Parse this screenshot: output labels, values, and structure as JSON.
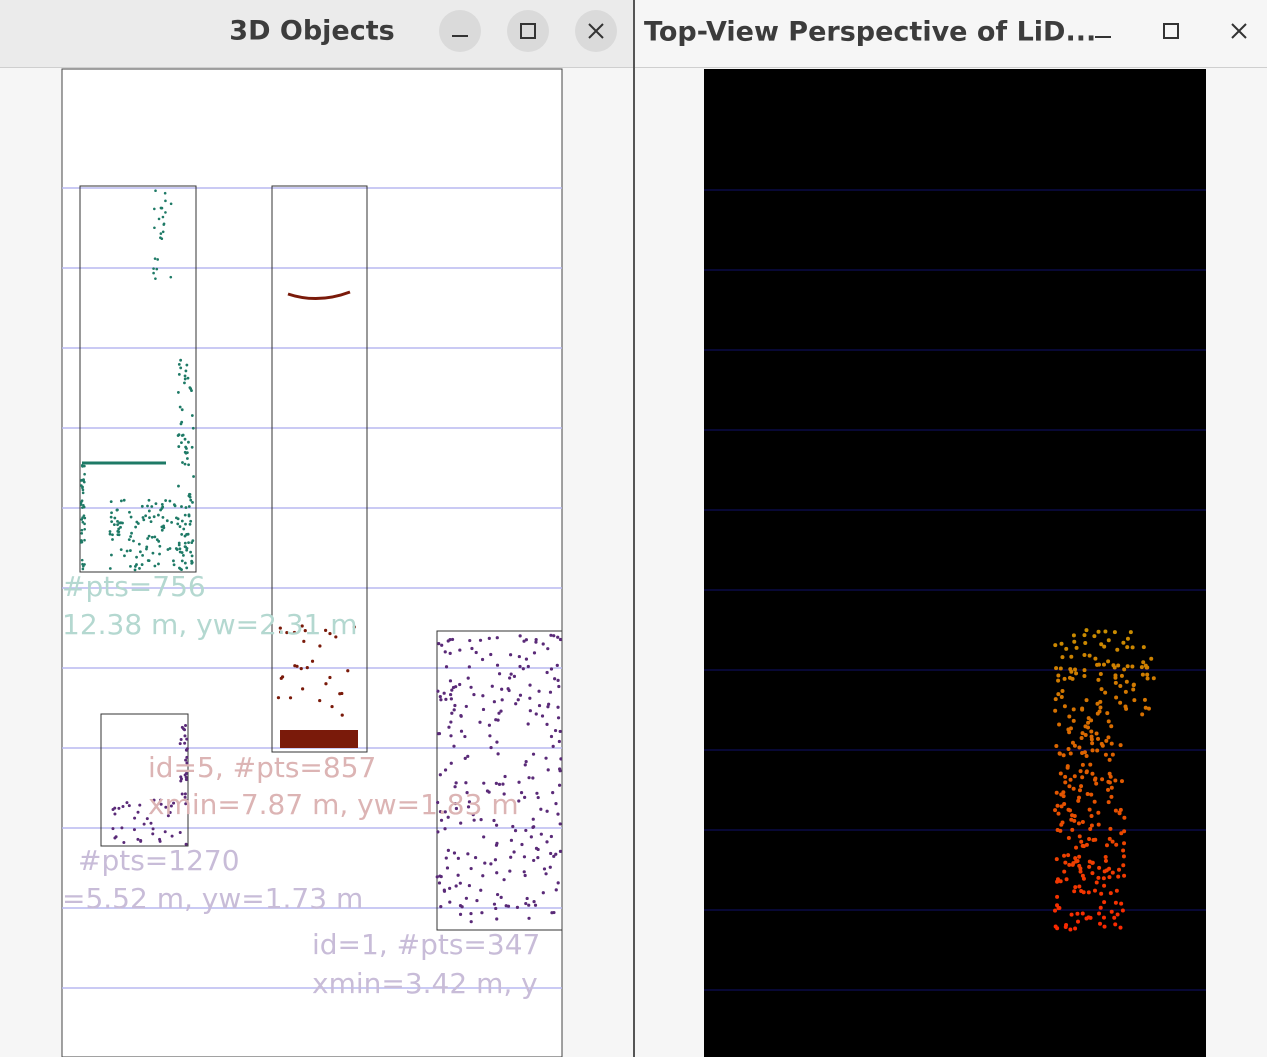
{
  "windows": [
    {
      "title": "3D Objects",
      "labels": [
        "#pts=756",
        "12.38 m, yw=2.31 m",
        "id=5, #pts=857",
        "xmin=7.87 m, yw=1.83 m",
        "#pts=1270",
        "=5.52 m, yw=1.73 m",
        "id=1, #pts=347",
        "xmin=3.42 m, y"
      ]
    },
    {
      "title": "Top-View Perspective of LiD..."
    }
  ]
}
